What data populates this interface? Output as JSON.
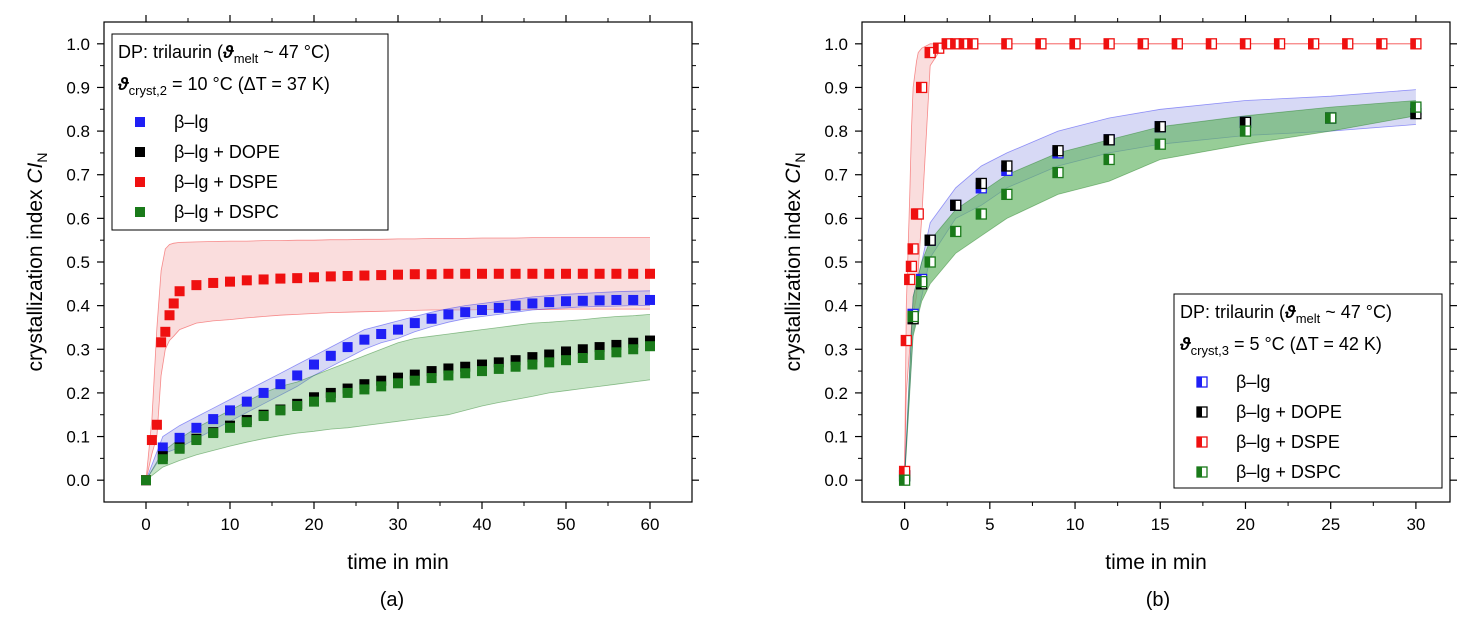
{
  "figure": {
    "caption_a": "(a)",
    "caption_b": "(b)"
  },
  "colors": {
    "beta_lg": "#1f1ff5",
    "dope": "#000000",
    "dspe": "#ef1010",
    "dspc": "#1a7a1a",
    "band_blue": "#9aa0e6",
    "band_red": "#f4b3b3",
    "band_green": "#5fb25f"
  },
  "chart_data": [
    {
      "id": "a",
      "type": "scatter",
      "xlabel": "time in min",
      "ylabel_main": "crystallization index ",
      "ylabel_italic": "CI",
      "ylabel_sub": "N",
      "xlim": [
        -5,
        65
      ],
      "ylim": [
        -0.05,
        1.05
      ],
      "xticks": [
        0,
        10,
        20,
        30,
        40,
        50,
        60
      ],
      "xtick_labels": [
        "0",
        "10",
        "20",
        "30",
        "40",
        "50",
        "60"
      ],
      "yticks": [
        0,
        0.1,
        0.2,
        0.3,
        0.4,
        0.5,
        0.6,
        0.7,
        0.8,
        0.9,
        1.0
      ],
      "ytick_labels": [
        "0.0",
        "0.1",
        "0.2",
        "0.3",
        "0.4",
        "0.5",
        "0.6",
        "0.7",
        "0.8",
        "0.9",
        "1.0"
      ],
      "marker_style": "filled",
      "legend": {
        "placement": "top-left",
        "line1_prefix": "DP: trilaurin (",
        "line1_symbol": "ϑ",
        "line1_sub": "melt",
        "line1_suffix": " ~ 47 °C)",
        "line2_symbol": "ϑ",
        "line2_sub": "cryst,2",
        "line2_suffix": " = 10 °C (ΔT = 37 K)",
        "entries": [
          "β–lg",
          "β–lg + DOPE",
          "β–lg + DSPE",
          "β–lg + DSPC"
        ]
      },
      "series": [
        {
          "name": "β–lg",
          "color_key": "beta_lg",
          "x": [
            0,
            2,
            4,
            6,
            8,
            10,
            12,
            14,
            16,
            18,
            20,
            22,
            24,
            26,
            28,
            30,
            32,
            34,
            36,
            38,
            40,
            42,
            44,
            46,
            48,
            50,
            52,
            54,
            56,
            58,
            60
          ],
          "y": [
            0.0,
            0.075,
            0.097,
            0.12,
            0.14,
            0.16,
            0.18,
            0.2,
            0.22,
            0.24,
            0.265,
            0.285,
            0.305,
            0.322,
            0.335,
            0.345,
            0.36,
            0.37,
            0.38,
            0.385,
            0.39,
            0.395,
            0.4,
            0.405,
            0.408,
            0.41,
            0.411,
            0.412,
            0.413,
            0.413,
            0.413
          ],
          "band_upper": [
            0.0,
            0.1,
            0.125,
            0.145,
            0.165,
            0.185,
            0.205,
            0.225,
            0.245,
            0.265,
            0.285,
            0.305,
            0.325,
            0.345,
            0.355,
            0.365,
            0.375,
            0.385,
            0.393,
            0.4,
            0.405,
            0.41,
            0.415,
            0.42,
            0.423,
            0.426,
            0.428,
            0.43,
            0.432,
            0.433,
            0.434
          ],
          "band_lower": [
            0.0,
            0.06,
            0.075,
            0.095,
            0.115,
            0.135,
            0.155,
            0.175,
            0.195,
            0.215,
            0.24,
            0.26,
            0.28,
            0.3,
            0.315,
            0.325,
            0.34,
            0.352,
            0.362,
            0.37,
            0.375,
            0.38,
            0.385,
            0.39,
            0.393,
            0.395,
            0.397,
            0.398,
            0.399,
            0.4,
            0.4
          ]
        },
        {
          "name": "β–lg + DOPE",
          "color_key": "dope",
          "x": [
            0,
            2,
            4,
            6,
            8,
            10,
            12,
            14,
            16,
            18,
            20,
            22,
            24,
            26,
            28,
            30,
            32,
            34,
            36,
            38,
            40,
            42,
            44,
            46,
            48,
            50,
            52,
            54,
            56,
            58,
            60
          ],
          "y": [
            0.0,
            0.055,
            0.075,
            0.095,
            0.11,
            0.125,
            0.138,
            0.15,
            0.162,
            0.175,
            0.19,
            0.2,
            0.21,
            0.22,
            0.228,
            0.235,
            0.242,
            0.25,
            0.256,
            0.26,
            0.265,
            0.27,
            0.275,
            0.282,
            0.288,
            0.295,
            0.3,
            0.305,
            0.31,
            0.315,
            0.32
          ],
          "band_upper": [
            0.0,
            0.075,
            0.1,
            0.12,
            0.14,
            0.16,
            0.175,
            0.19,
            0.205,
            0.22,
            0.24,
            0.255,
            0.27,
            0.285,
            0.295,
            0.3,
            0.305,
            0.31,
            0.312,
            0.314,
            0.315,
            0.318,
            0.32,
            0.322,
            0.325,
            0.328,
            0.33,
            0.332,
            0.334,
            0.336,
            0.34
          ],
          "band_lower": [
            0.0,
            0.035,
            0.05,
            0.065,
            0.08,
            0.09,
            0.1,
            0.11,
            0.12,
            0.13,
            0.14,
            0.148,
            0.155,
            0.162,
            0.17,
            0.178,
            0.185,
            0.192,
            0.2,
            0.206,
            0.212,
            0.22,
            0.228,
            0.236,
            0.244,
            0.252,
            0.26,
            0.268,
            0.275,
            0.285,
            0.295
          ]
        },
        {
          "name": "β–lg + DSPE",
          "color_key": "dspe",
          "x": [
            0,
            0.7,
            1.3,
            1.8,
            2.3,
            2.8,
            3.3,
            4,
            6,
            8,
            10,
            12,
            14,
            16,
            18,
            20,
            22,
            24,
            26,
            28,
            30,
            32,
            34,
            36,
            38,
            40,
            42,
            44,
            46,
            48,
            50,
            52,
            54,
            56,
            58,
            60
          ],
          "y": [
            0.0,
            0.092,
            0.127,
            0.316,
            0.34,
            0.378,
            0.405,
            0.433,
            0.447,
            0.452,
            0.455,
            0.458,
            0.46,
            0.462,
            0.463,
            0.465,
            0.467,
            0.468,
            0.469,
            0.47,
            0.471,
            0.472,
            0.472,
            0.473,
            0.473,
            0.473,
            0.473,
            0.473,
            0.473,
            0.473,
            0.473,
            0.473,
            0.473,
            0.473,
            0.473,
            0.473
          ],
          "band_upper": [
            0.0,
            0.14,
            0.35,
            0.48,
            0.53,
            0.54,
            0.543,
            0.545,
            0.546,
            0.547,
            0.548,
            0.548,
            0.549,
            0.549,
            0.55,
            0.55,
            0.551,
            0.551,
            0.552,
            0.552,
            0.553,
            0.553,
            0.554,
            0.554,
            0.554,
            0.555,
            0.555,
            0.555,
            0.556,
            0.556,
            0.556,
            0.556,
            0.556,
            0.556,
            0.556,
            0.556
          ],
          "band_lower": [
            0.0,
            0.06,
            0.1,
            0.24,
            0.3,
            0.32,
            0.33,
            0.345,
            0.36,
            0.365,
            0.368,
            0.372,
            0.375,
            0.378,
            0.38,
            0.382,
            0.384,
            0.385,
            0.386,
            0.387,
            0.388,
            0.389,
            0.39,
            0.39,
            0.39,
            0.391,
            0.391,
            0.391,
            0.391,
            0.391,
            0.392,
            0.392,
            0.392,
            0.392,
            0.392,
            0.392
          ]
        },
        {
          "name": "β–lg + DSPC",
          "color_key": "dspc",
          "x": [
            0,
            2,
            4,
            6,
            8,
            10,
            12,
            14,
            16,
            18,
            20,
            22,
            24,
            26,
            28,
            30,
            32,
            34,
            36,
            38,
            40,
            42,
            44,
            46,
            48,
            50,
            52,
            54,
            56,
            58,
            60
          ],
          "y": [
            0.0,
            0.048,
            0.072,
            0.092,
            0.108,
            0.12,
            0.133,
            0.147,
            0.16,
            0.17,
            0.18,
            0.19,
            0.2,
            0.208,
            0.215,
            0.222,
            0.228,
            0.234,
            0.24,
            0.245,
            0.25,
            0.255,
            0.26,
            0.265,
            0.27,
            0.275,
            0.28,
            0.287,
            0.293,
            0.3,
            0.307
          ],
          "band_upper": [
            0.0,
            0.065,
            0.095,
            0.12,
            0.14,
            0.16,
            0.18,
            0.2,
            0.215,
            0.225,
            0.24,
            0.255,
            0.27,
            0.285,
            0.3,
            0.315,
            0.325,
            0.33,
            0.335,
            0.34,
            0.345,
            0.35,
            0.355,
            0.36,
            0.362,
            0.365,
            0.368,
            0.372,
            0.375,
            0.377,
            0.38
          ],
          "band_lower": [
            0.0,
            0.03,
            0.045,
            0.058,
            0.068,
            0.078,
            0.087,
            0.095,
            0.102,
            0.108,
            0.112,
            0.117,
            0.12,
            0.125,
            0.13,
            0.135,
            0.14,
            0.145,
            0.15,
            0.16,
            0.17,
            0.178,
            0.185,
            0.192,
            0.2,
            0.205,
            0.21,
            0.215,
            0.22,
            0.225,
            0.23
          ]
        }
      ]
    },
    {
      "id": "b",
      "type": "scatter",
      "xlabel": "time in min",
      "ylabel_main": "crystallization index ",
      "ylabel_italic": "CI",
      "ylabel_sub": "N",
      "xlim": [
        -2.5,
        32
      ],
      "ylim": [
        -0.05,
        1.05
      ],
      "xticks": [
        0,
        5,
        10,
        15,
        20,
        25,
        30
      ],
      "xtick_labels": [
        "0",
        "5",
        "10",
        "15",
        "20",
        "25",
        "30"
      ],
      "yticks": [
        0,
        0.1,
        0.2,
        0.3,
        0.4,
        0.5,
        0.6,
        0.7,
        0.8,
        0.9,
        1.0
      ],
      "ytick_labels": [
        "0.0",
        "0.1",
        "0.2",
        "0.3",
        "0.4",
        "0.5",
        "0.6",
        "0.7",
        "0.8",
        "0.9",
        "1.0"
      ],
      "marker_style": "half",
      "legend": {
        "placement": "bottom-right",
        "line1_prefix": "DP: trilaurin (",
        "line1_symbol": "ϑ",
        "line1_sub": "melt",
        "line1_suffix": " ~ 47 °C)",
        "line2_symbol": "ϑ",
        "line2_sub": "cryst,3",
        "line2_suffix": " = 5 °C (ΔT = 42 K)",
        "entries": [
          "β–lg",
          "β–lg + DOPE",
          "β–lg + DSPE",
          "β–lg + DSPC"
        ]
      },
      "series": [
        {
          "name": "β–lg",
          "color_key": "beta_lg",
          "x": [
            0,
            0.5,
            1,
            1.5,
            3,
            4.5,
            6,
            9,
            12,
            15,
            20,
            25,
            30
          ],
          "y": [
            0.01,
            0.38,
            0.46,
            0.55,
            0.63,
            0.67,
            0.71,
            0.75,
            0.78,
            0.81,
            0.82,
            0.83,
            0.85
          ],
          "band_upper": [
            0.01,
            0.42,
            0.5,
            0.59,
            0.67,
            0.72,
            0.75,
            0.8,
            0.83,
            0.85,
            0.87,
            0.88,
            0.895
          ],
          "band_lower": [
            0.01,
            0.34,
            0.42,
            0.51,
            0.6,
            0.63,
            0.67,
            0.72,
            0.75,
            0.77,
            0.79,
            0.8,
            0.815
          ]
        },
        {
          "name": "β–lg + DOPE",
          "color_key": "dope",
          "x": [
            0,
            0.5,
            1,
            1.5,
            3,
            4.5,
            6,
            9,
            12,
            15,
            20,
            25,
            30
          ],
          "y": [
            0.01,
            0.37,
            0.45,
            0.55,
            0.63,
            0.68,
            0.72,
            0.755,
            0.78,
            0.81,
            0.82,
            0.83,
            0.84
          ],
          "band_upper": [
            0.01,
            0.41,
            0.49,
            0.59,
            0.66,
            0.71,
            0.74,
            0.78,
            0.8,
            0.83,
            0.84,
            0.85,
            0.86
          ],
          "band_lower": [
            0.01,
            0.33,
            0.41,
            0.51,
            0.6,
            0.65,
            0.69,
            0.73,
            0.76,
            0.78,
            0.8,
            0.81,
            0.82
          ]
        },
        {
          "name": "β–lg + DSPE",
          "color_key": "dspe",
          "x": [
            0,
            0.1,
            0.3,
            0.4,
            0.5,
            0.7,
            0.8,
            1,
            1.5,
            2,
            2.5,
            3,
            3.5,
            4,
            6,
            8,
            10,
            12,
            14,
            16,
            18,
            20,
            22,
            24,
            26,
            28,
            30
          ],
          "y": [
            0.02,
            0.32,
            0.46,
            0.49,
            0.53,
            0.61,
            0.61,
            0.9,
            0.98,
            0.99,
            1.0,
            1.0,
            1.0,
            1.0,
            1.0,
            1.0,
            1.0,
            1.0,
            1.0,
            1.0,
            1.0,
            1.0,
            1.0,
            1.0,
            1.0,
            1.0,
            1.0
          ],
          "band_upper": [
            0.02,
            0.4,
            0.65,
            0.8,
            0.9,
            0.96,
            0.98,
            0.99,
            1.0,
            1.0,
            1.0,
            1.0,
            1.0,
            1.0,
            1.0,
            1.0,
            1.0,
            1.0,
            1.0,
            1.0,
            1.0,
            1.0,
            1.0,
            1.0,
            1.0,
            1.0,
            1.0
          ],
          "band_lower": [
            0.02,
            0.2,
            0.3,
            0.35,
            0.38,
            0.42,
            0.48,
            0.6,
            0.95,
            0.98,
            0.995,
            1.0,
            1.0,
            1.0,
            1.0,
            1.0,
            1.0,
            1.0,
            1.0,
            1.0,
            1.0,
            1.0,
            1.0,
            1.0,
            1.0,
            1.0,
            1.0
          ]
        },
        {
          "name": "β–lg + DSPC",
          "color_key": "dspc",
          "x": [
            0,
            0.5,
            1,
            1.5,
            3,
            4.5,
            6,
            9,
            12,
            15,
            20,
            25,
            30
          ],
          "y": [
            0.0,
            0.375,
            0.455,
            0.5,
            0.57,
            0.61,
            0.655,
            0.705,
            0.735,
            0.77,
            0.8,
            0.83,
            0.855
          ],
          "band_upper": [
            0.0,
            0.42,
            0.5,
            0.55,
            0.62,
            0.66,
            0.7,
            0.75,
            0.78,
            0.81,
            0.835,
            0.855,
            0.87
          ],
          "band_lower": [
            0.0,
            0.33,
            0.41,
            0.45,
            0.52,
            0.56,
            0.6,
            0.655,
            0.685,
            0.735,
            0.77,
            0.8,
            0.835
          ]
        }
      ]
    }
  ]
}
